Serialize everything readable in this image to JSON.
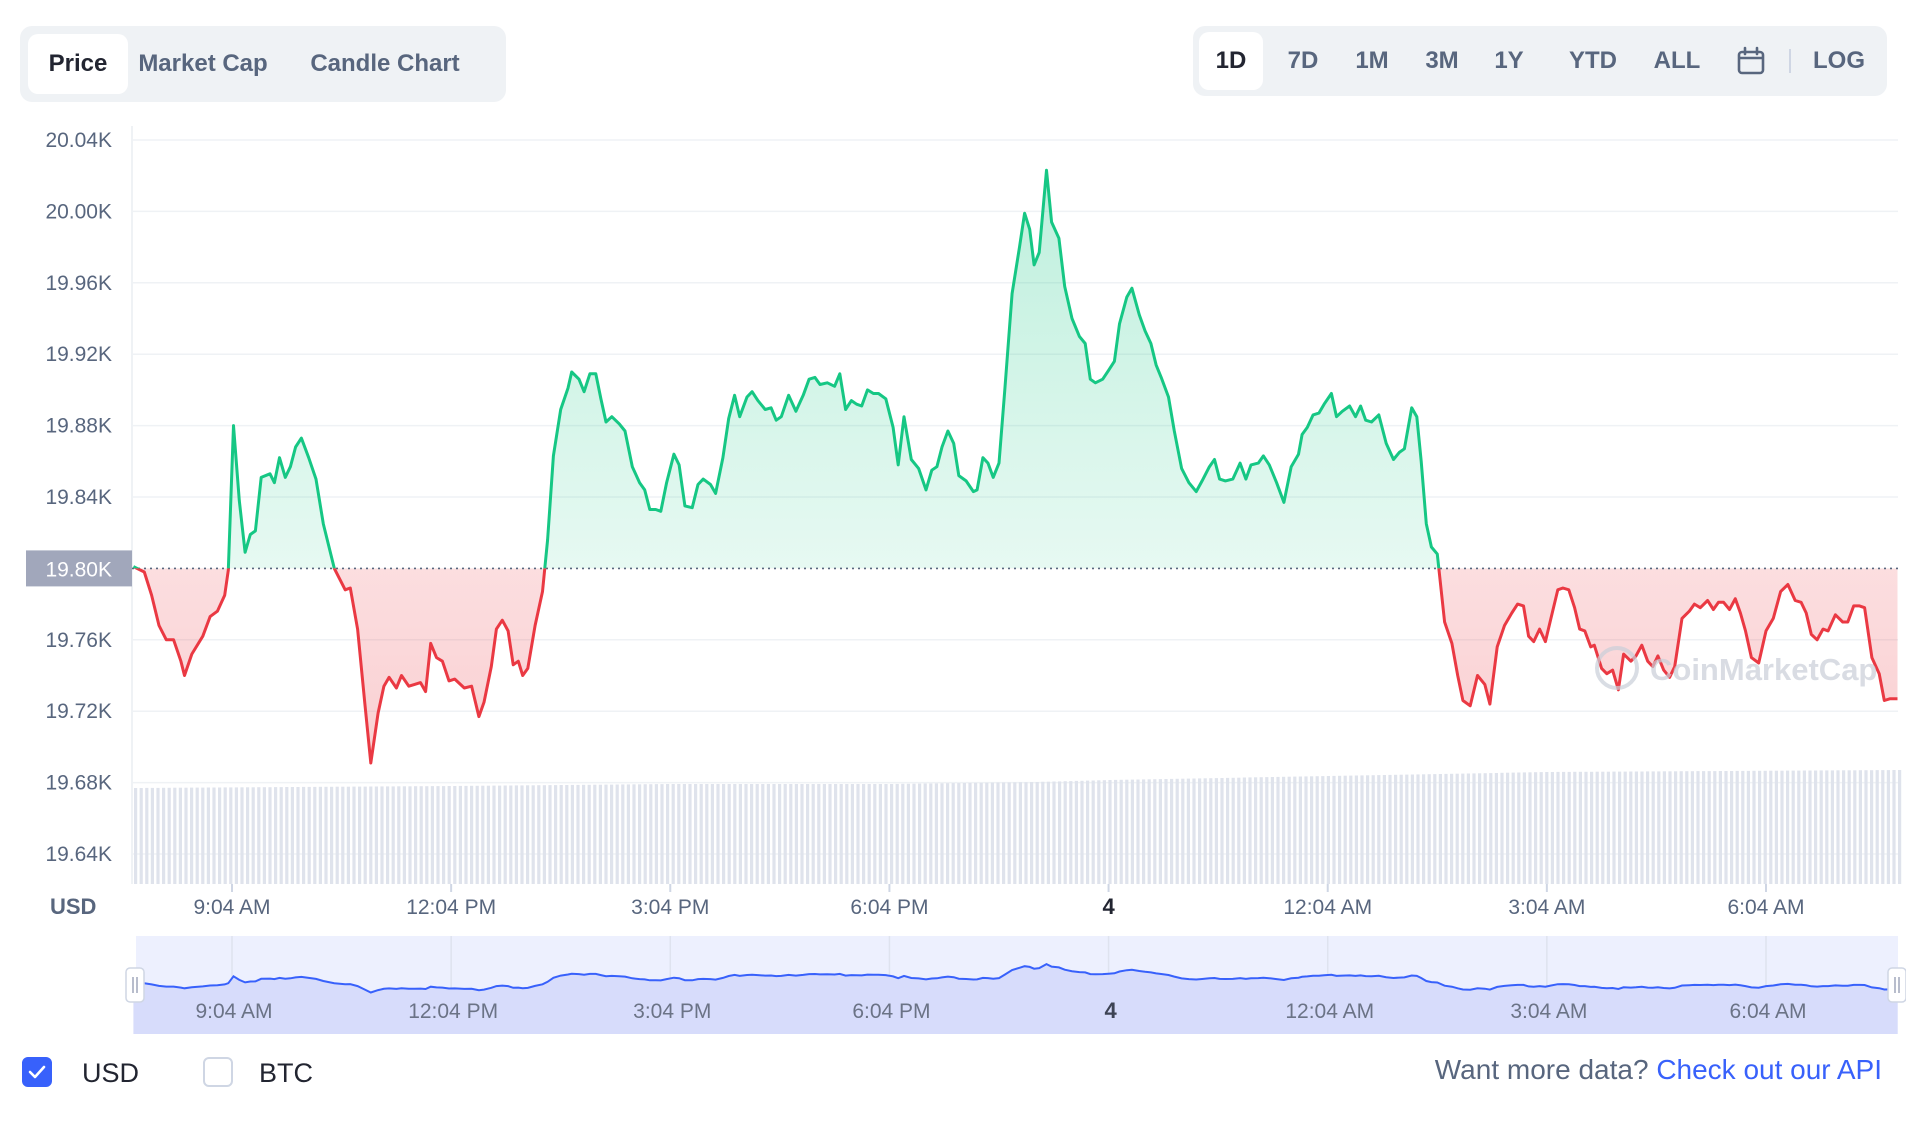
{
  "tabs_left": [
    "Price",
    "Market Cap",
    "Candle Chart"
  ],
  "active_left": "Price",
  "tabs_right": [
    "1D",
    "7D",
    "1M",
    "3M",
    "1Y",
    "YTD",
    "ALL"
  ],
  "active_right": "1D",
  "log_label": "LOG",
  "calendar_icon": "calendar-icon",
  "footer": {
    "usd_label": "USD",
    "btc_label": "BTC",
    "usd_checked": true,
    "btc_checked": false,
    "api_prompt": "Want more data?",
    "api_link": "Check out our API"
  },
  "colors": {
    "up": "#16c784",
    "down": "#ea3943",
    "accent": "#3861fb"
  },
  "chart_data": {
    "type": "line",
    "currency_label": "USD",
    "y_ticks": [
      "20.04K",
      "20.00K",
      "19.96K",
      "19.92K",
      "19.88K",
      "19.84K",
      "19.76K",
      "19.72K",
      "19.68K",
      "19.64K"
    ],
    "y_tick_values": [
      20040,
      20000,
      19960,
      19920,
      19880,
      19840,
      19760,
      19720,
      19680,
      19640
    ],
    "ylim": [
      19626,
      20048
    ],
    "baseline": 19800,
    "baseline_label": "19.80K",
    "x_ticks": [
      {
        "t": 1.0,
        "label": "9:04 AM"
      },
      {
        "t": 4.0,
        "label": "12:04 PM"
      },
      {
        "t": 7.0,
        "label": "3:04 PM"
      },
      {
        "t": 10.0,
        "label": "6:04 PM"
      },
      {
        "t": 13.0,
        "label": "4"
      },
      {
        "t": 16.0,
        "label": "12:04 AM"
      },
      {
        "t": 19.0,
        "label": "3:04 AM"
      },
      {
        "t": 22.0,
        "label": "6:04 AM"
      }
    ],
    "xlim": [
      -0.35,
      23.8
    ],
    "watermark": "CoinMarketCap",
    "price": [
      [
        -0.35,
        19801
      ],
      [
        -0.2,
        19798
      ],
      [
        -0.1,
        19785
      ],
      [
        0.0,
        19768
      ],
      [
        0.1,
        19760
      ],
      [
        0.2,
        19760
      ],
      [
        0.3,
        19748
      ],
      [
        0.35,
        19740
      ],
      [
        0.45,
        19752
      ],
      [
        0.6,
        19762
      ],
      [
        0.7,
        19773
      ],
      [
        0.8,
        19776
      ],
      [
        0.9,
        19785
      ],
      [
        0.95,
        19799
      ],
      [
        1.02,
        19880
      ],
      [
        1.1,
        19838
      ],
      [
        1.18,
        19809
      ],
      [
        1.25,
        19819
      ],
      [
        1.32,
        19821
      ],
      [
        1.4,
        19851
      ],
      [
        1.52,
        19853
      ],
      [
        1.58,
        19848
      ],
      [
        1.65,
        19862
      ],
      [
        1.73,
        19851
      ],
      [
        1.8,
        19857
      ],
      [
        1.87,
        19868
      ],
      [
        1.95,
        19873
      ],
      [
        2.05,
        19862
      ],
      [
        2.15,
        19850
      ],
      [
        2.25,
        19825
      ],
      [
        2.4,
        19800
      ],
      [
        2.55,
        19788
      ],
      [
        2.62,
        19789
      ],
      [
        2.72,
        19766
      ],
      [
        2.82,
        19724
      ],
      [
        2.9,
        19691
      ],
      [
        3.0,
        19719
      ],
      [
        3.08,
        19734
      ],
      [
        3.15,
        19739
      ],
      [
        3.25,
        19733
      ],
      [
        3.32,
        19740
      ],
      [
        3.42,
        19734
      ],
      [
        3.5,
        19735
      ],
      [
        3.58,
        19736
      ],
      [
        3.65,
        19731
      ],
      [
        3.72,
        19758
      ],
      [
        3.8,
        19750
      ],
      [
        3.88,
        19748
      ],
      [
        3.97,
        19737
      ],
      [
        4.05,
        19738
      ],
      [
        4.18,
        19733
      ],
      [
        4.28,
        19734
      ],
      [
        4.38,
        19717
      ],
      [
        4.45,
        19725
      ],
      [
        4.55,
        19745
      ],
      [
        4.62,
        19766
      ],
      [
        4.7,
        19771
      ],
      [
        4.78,
        19765
      ],
      [
        4.85,
        19746
      ],
      [
        4.92,
        19748
      ],
      [
        4.98,
        19740
      ],
      [
        5.05,
        19744
      ],
      [
        5.15,
        19768
      ],
      [
        5.25,
        19787
      ],
      [
        5.32,
        19816
      ],
      [
        5.4,
        19863
      ],
      [
        5.5,
        19889
      ],
      [
        5.6,
        19901
      ],
      [
        5.65,
        19910
      ],
      [
        5.75,
        19906
      ],
      [
        5.82,
        19899
      ],
      [
        5.9,
        19909
      ],
      [
        5.98,
        19909
      ],
      [
        6.05,
        19895
      ],
      [
        6.12,
        19882
      ],
      [
        6.2,
        19885
      ],
      [
        6.3,
        19881
      ],
      [
        6.38,
        19877
      ],
      [
        6.48,
        19857
      ],
      [
        6.58,
        19848
      ],
      [
        6.65,
        19844
      ],
      [
        6.72,
        19833
      ],
      [
        6.8,
        19833
      ],
      [
        6.87,
        19832
      ],
      [
        6.95,
        19848
      ],
      [
        7.05,
        19864
      ],
      [
        7.12,
        19858
      ],
      [
        7.2,
        19835
      ],
      [
        7.3,
        19834
      ],
      [
        7.38,
        19847
      ],
      [
        7.45,
        19850
      ],
      [
        7.55,
        19847
      ],
      [
        7.62,
        19842
      ],
      [
        7.72,
        19862
      ],
      [
        7.8,
        19884
      ],
      [
        7.88,
        19897
      ],
      [
        7.95,
        19885
      ],
      [
        8.05,
        19896
      ],
      [
        8.12,
        19899
      ],
      [
        8.2,
        19894
      ],
      [
        8.3,
        19889
      ],
      [
        8.38,
        19890
      ],
      [
        8.45,
        19883
      ],
      [
        8.52,
        19885
      ],
      [
        8.62,
        19897
      ],
      [
        8.72,
        19888
      ],
      [
        8.82,
        19897
      ],
      [
        8.9,
        19906
      ],
      [
        8.98,
        19907
      ],
      [
        9.05,
        19903
      ],
      [
        9.15,
        19904
      ],
      [
        9.25,
        19902
      ],
      [
        9.32,
        19909
      ],
      [
        9.4,
        19889
      ],
      [
        9.48,
        19894
      ],
      [
        9.55,
        19892
      ],
      [
        9.62,
        19891
      ],
      [
        9.7,
        19900
      ],
      [
        9.78,
        19898
      ],
      [
        9.85,
        19898
      ],
      [
        9.95,
        19895
      ],
      [
        10.05,
        19879
      ],
      [
        10.12,
        19858
      ],
      [
        10.2,
        19885
      ],
      [
        10.3,
        19861
      ],
      [
        10.4,
        19856
      ],
      [
        10.5,
        19844
      ],
      [
        10.58,
        19855
      ],
      [
        10.65,
        19857
      ],
      [
        10.72,
        19868
      ],
      [
        10.8,
        19877
      ],
      [
        10.88,
        19870
      ],
      [
        10.95,
        19852
      ],
      [
        11.05,
        19849
      ],
      [
        11.15,
        19843
      ],
      [
        11.2,
        19844
      ],
      [
        11.28,
        19862
      ],
      [
        11.35,
        19859
      ],
      [
        11.42,
        19851
      ],
      [
        11.5,
        19859
      ],
      [
        11.58,
        19900
      ],
      [
        11.68,
        19954
      ],
      [
        11.78,
        19980
      ],
      [
        11.85,
        19999
      ],
      [
        11.92,
        19990
      ],
      [
        11.98,
        19970
      ],
      [
        12.05,
        19977
      ],
      [
        12.15,
        20023
      ],
      [
        12.22,
        19994
      ],
      [
        12.32,
        19985
      ],
      [
        12.4,
        19958
      ],
      [
        12.5,
        19940
      ],
      [
        12.6,
        19930
      ],
      [
        12.68,
        19926
      ],
      [
        12.75,
        19906
      ],
      [
        12.82,
        19904
      ],
      [
        12.92,
        19906
      ],
      [
        13.0,
        19911
      ],
      [
        13.08,
        19916
      ],
      [
        13.15,
        19937
      ],
      [
        13.25,
        19952
      ],
      [
        13.32,
        19957
      ],
      [
        13.42,
        19942
      ],
      [
        13.5,
        19933
      ],
      [
        13.58,
        19926
      ],
      [
        13.65,
        19914
      ],
      [
        13.72,
        19907
      ],
      [
        13.82,
        19896
      ],
      [
        13.9,
        19877
      ],
      [
        14.0,
        19856
      ],
      [
        14.1,
        19848
      ],
      [
        14.2,
        19843
      ],
      [
        14.28,
        19849
      ],
      [
        14.38,
        19857
      ],
      [
        14.45,
        19861
      ],
      [
        14.52,
        19850
      ],
      [
        14.6,
        19849
      ],
      [
        14.7,
        19850
      ],
      [
        14.8,
        19859
      ],
      [
        14.88,
        19850
      ],
      [
        14.95,
        19858
      ],
      [
        15.05,
        19859
      ],
      [
        15.12,
        19863
      ],
      [
        15.2,
        19858
      ],
      [
        15.3,
        19848
      ],
      [
        15.4,
        19837
      ],
      [
        15.5,
        19857
      ],
      [
        15.6,
        19864
      ],
      [
        15.65,
        19875
      ],
      [
        15.72,
        19879
      ],
      [
        15.8,
        19886
      ],
      [
        15.88,
        19887
      ],
      [
        15.95,
        19892
      ],
      [
        16.05,
        19898
      ],
      [
        16.12,
        19885
      ],
      [
        16.2,
        19888
      ],
      [
        16.3,
        19891
      ],
      [
        16.38,
        19885
      ],
      [
        16.45,
        19891
      ],
      [
        16.52,
        19883
      ],
      [
        16.6,
        19882
      ],
      [
        16.7,
        19886
      ],
      [
        16.8,
        19870
      ],
      [
        16.9,
        19861
      ],
      [
        16.98,
        19865
      ],
      [
        17.05,
        19867
      ],
      [
        17.15,
        19890
      ],
      [
        17.22,
        19885
      ],
      [
        17.28,
        19860
      ],
      [
        17.35,
        19825
      ],
      [
        17.42,
        19812
      ],
      [
        17.5,
        19808
      ],
      [
        17.6,
        19770
      ],
      [
        17.7,
        19758
      ],
      [
        17.78,
        19740
      ],
      [
        17.85,
        19726
      ],
      [
        17.95,
        19723
      ],
      [
        18.05,
        19740
      ],
      [
        18.15,
        19735
      ],
      [
        18.22,
        19724
      ],
      [
        18.32,
        19756
      ],
      [
        18.42,
        19768
      ],
      [
        18.52,
        19775
      ],
      [
        18.6,
        19780
      ],
      [
        18.68,
        19779
      ],
      [
        18.75,
        19762
      ],
      [
        18.82,
        19759
      ],
      [
        18.9,
        19766
      ],
      [
        18.98,
        19759
      ],
      [
        19.05,
        19771
      ],
      [
        19.15,
        19788
      ],
      [
        19.22,
        19789
      ],
      [
        19.3,
        19788
      ],
      [
        19.38,
        19778
      ],
      [
        19.45,
        19766
      ],
      [
        19.52,
        19765
      ],
      [
        19.6,
        19756
      ],
      [
        19.65,
        19757
      ],
      [
        19.75,
        19744
      ],
      [
        19.82,
        19741
      ],
      [
        19.9,
        19743
      ],
      [
        19.98,
        19732
      ],
      [
        20.05,
        19752
      ],
      [
        20.15,
        19748
      ],
      [
        20.22,
        19751
      ],
      [
        20.3,
        19757
      ],
      [
        20.38,
        19748
      ],
      [
        20.45,
        19745
      ],
      [
        20.52,
        19751
      ],
      [
        20.6,
        19743
      ],
      [
        20.68,
        19739
      ],
      [
        20.75,
        19745
      ],
      [
        20.85,
        19772
      ],
      [
        20.95,
        19776
      ],
      [
        21.02,
        19780
      ],
      [
        21.1,
        19778
      ],
      [
        21.2,
        19782
      ],
      [
        21.28,
        19777
      ],
      [
        21.35,
        19781
      ],
      [
        21.42,
        19781
      ],
      [
        21.5,
        19777
      ],
      [
        21.58,
        19783
      ],
      [
        21.65,
        19775
      ],
      [
        21.72,
        19765
      ],
      [
        21.8,
        19750
      ],
      [
        21.9,
        19747
      ],
      [
        22.0,
        19765
      ],
      [
        22.1,
        19772
      ],
      [
        22.2,
        19787
      ],
      [
        22.3,
        19791
      ],
      [
        22.4,
        19782
      ],
      [
        22.48,
        19781
      ],
      [
        22.55,
        19775
      ],
      [
        22.62,
        19763
      ],
      [
        22.7,
        19760
      ],
      [
        22.78,
        19766
      ],
      [
        22.85,
        19765
      ],
      [
        22.95,
        19774
      ],
      [
        23.05,
        19770
      ],
      [
        23.12,
        19770
      ],
      [
        23.2,
        19779
      ],
      [
        23.28,
        19779
      ],
      [
        23.35,
        19778
      ],
      [
        23.45,
        19750
      ],
      [
        23.55,
        19741
      ],
      [
        23.62,
        19726
      ],
      [
        23.7,
        19727
      ],
      [
        23.8,
        19727
      ]
    ],
    "volume_note": "relative volume level (0-1) across the period",
    "volume_levels": [
      [
        -0.35,
        0.48
      ],
      [
        4.0,
        0.49
      ],
      [
        7.0,
        0.5
      ],
      [
        10.0,
        0.5
      ],
      [
        12.0,
        0.51
      ],
      [
        13.0,
        0.52
      ],
      [
        16.0,
        0.54
      ],
      [
        19.0,
        0.56
      ],
      [
        23.8,
        0.57
      ]
    ]
  }
}
